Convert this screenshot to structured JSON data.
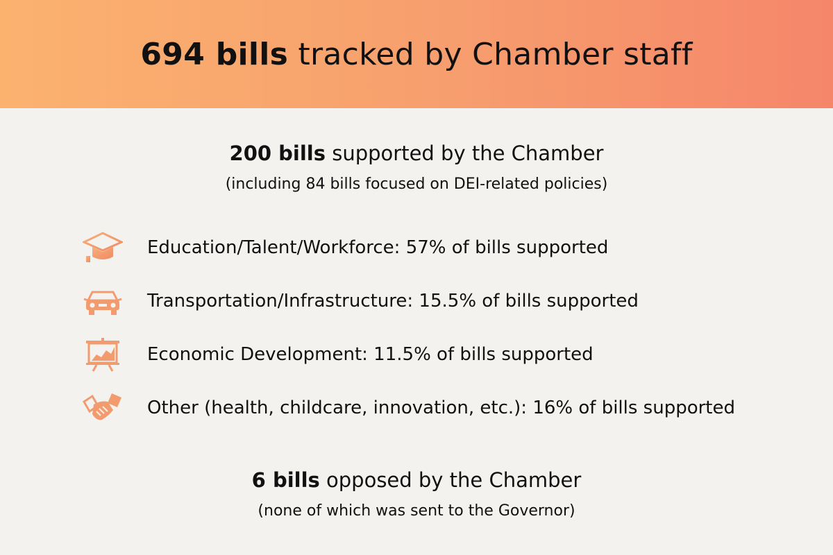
{
  "colors": {
    "banner_start": "#fbb26f",
    "banner_end": "#f5866a",
    "icon": "#f29b6f",
    "background": "#f4f2ee"
  },
  "header": {
    "title_bold": "694 bills",
    "title_rest": " tracked by Chamber staff"
  },
  "supported": {
    "headline_bold": "200 bills",
    "headline_rest": " supported by the Chamber",
    "subline": "(including 84 bills focused on DEI-related policies)"
  },
  "categories": [
    {
      "icon": "graduation-cap-icon",
      "label": "Education/Talent/Workforce: 57% of bills supported"
    },
    {
      "icon": "car-icon",
      "label": "Transportation/Infrastructure: 15.5% of bills supported"
    },
    {
      "icon": "presentation-chart-icon",
      "label": "Economic Development: 11.5% of bills supported"
    },
    {
      "icon": "handshake-icon",
      "label": "Other (health, childcare, innovation, etc.): 16% of bills supported"
    }
  ],
  "opposed": {
    "headline_bold": "6 bills",
    "headline_rest": " opposed by the Chamber",
    "subline": "(none of which was sent to the Governor)"
  }
}
